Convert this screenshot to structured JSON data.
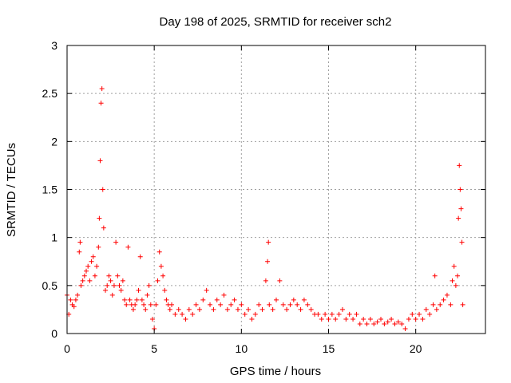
{
  "chart_data": {
    "type": "scatter",
    "title": "Day 198 of 2025, SRMTID for receiver sch2",
    "xlabel": "GPS time / hours",
    "ylabel": "SRMTID / TECUs",
    "xlim": [
      0,
      24
    ],
    "ylim": [
      0,
      3
    ],
    "xticks": [
      0,
      5,
      10,
      15,
      20
    ],
    "yticks": [
      0,
      0.5,
      1,
      1.5,
      2,
      2.5,
      3
    ],
    "grid": true,
    "marker": "+",
    "series": [
      {
        "name": "SRMTID",
        "color": "#ff0000",
        "points": [
          [
            0.0,
            0.4
          ],
          [
            0.1,
            0.2
          ],
          [
            0.2,
            0.35
          ],
          [
            0.3,
            0.3
          ],
          [
            0.4,
            0.28
          ],
          [
            0.5,
            0.35
          ],
          [
            0.6,
            0.4
          ],
          [
            0.7,
            0.85
          ],
          [
            0.75,
            0.95
          ],
          [
            0.8,
            0.5
          ],
          [
            0.9,
            0.55
          ],
          [
            1.0,
            0.6
          ],
          [
            1.1,
            0.65
          ],
          [
            1.2,
            0.7
          ],
          [
            1.3,
            0.55
          ],
          [
            1.4,
            0.75
          ],
          [
            1.5,
            0.8
          ],
          [
            1.6,
            0.6
          ],
          [
            1.7,
            0.7
          ],
          [
            1.8,
            0.9
          ],
          [
            1.85,
            1.2
          ],
          [
            1.9,
            1.8
          ],
          [
            1.95,
            2.4
          ],
          [
            2.0,
            2.55
          ],
          [
            2.05,
            1.5
          ],
          [
            2.1,
            1.1
          ],
          [
            2.2,
            0.45
          ],
          [
            2.3,
            0.5
          ],
          [
            2.4,
            0.6
          ],
          [
            2.5,
            0.55
          ],
          [
            2.6,
            0.4
          ],
          [
            2.7,
            0.5
          ],
          [
            2.8,
            0.95
          ],
          [
            2.9,
            0.6
          ],
          [
            3.0,
            0.5
          ],
          [
            3.1,
            0.45
          ],
          [
            3.2,
            0.55
          ],
          [
            3.3,
            0.35
          ],
          [
            3.4,
            0.3
          ],
          [
            3.5,
            0.9
          ],
          [
            3.6,
            0.35
          ],
          [
            3.7,
            0.3
          ],
          [
            3.8,
            0.25
          ],
          [
            3.9,
            0.3
          ],
          [
            4.0,
            0.35
          ],
          [
            4.1,
            0.45
          ],
          [
            4.2,
            0.8
          ],
          [
            4.3,
            0.35
          ],
          [
            4.4,
            0.3
          ],
          [
            4.5,
            0.25
          ],
          [
            4.6,
            0.4
          ],
          [
            4.7,
            0.5
          ],
          [
            4.8,
            0.3
          ],
          [
            4.9,
            0.15
          ],
          [
            5.0,
            0.05
          ],
          [
            5.1,
            0.3
          ],
          [
            5.2,
            0.55
          ],
          [
            5.3,
            0.85
          ],
          [
            5.4,
            0.7
          ],
          [
            5.5,
            0.6
          ],
          [
            5.6,
            0.45
          ],
          [
            5.7,
            0.35
          ],
          [
            5.8,
            0.3
          ],
          [
            5.9,
            0.25
          ],
          [
            6.0,
            0.3
          ],
          [
            6.2,
            0.2
          ],
          [
            6.4,
            0.25
          ],
          [
            6.6,
            0.2
          ],
          [
            6.8,
            0.15
          ],
          [
            7.0,
            0.25
          ],
          [
            7.2,
            0.2
          ],
          [
            7.4,
            0.3
          ],
          [
            7.6,
            0.25
          ],
          [
            7.8,
            0.35
          ],
          [
            8.0,
            0.45
          ],
          [
            8.2,
            0.3
          ],
          [
            8.4,
            0.25
          ],
          [
            8.6,
            0.35
          ],
          [
            8.8,
            0.3
          ],
          [
            9.0,
            0.4
          ],
          [
            9.2,
            0.25
          ],
          [
            9.4,
            0.3
          ],
          [
            9.6,
            0.35
          ],
          [
            9.8,
            0.25
          ],
          [
            10.0,
            0.3
          ],
          [
            10.2,
            0.2
          ],
          [
            10.4,
            0.25
          ],
          [
            10.6,
            0.15
          ],
          [
            10.8,
            0.2
          ],
          [
            11.0,
            0.3
          ],
          [
            11.2,
            0.25
          ],
          [
            11.4,
            0.55
          ],
          [
            11.5,
            0.75
          ],
          [
            11.55,
            0.95
          ],
          [
            11.6,
            0.3
          ],
          [
            11.8,
            0.25
          ],
          [
            12.0,
            0.35
          ],
          [
            12.2,
            0.55
          ],
          [
            12.4,
            0.3
          ],
          [
            12.6,
            0.25
          ],
          [
            12.8,
            0.3
          ],
          [
            13.0,
            0.35
          ],
          [
            13.2,
            0.3
          ],
          [
            13.4,
            0.25
          ],
          [
            13.6,
            0.35
          ],
          [
            13.8,
            0.3
          ],
          [
            14.0,
            0.25
          ],
          [
            14.2,
            0.2
          ],
          [
            14.4,
            0.2
          ],
          [
            14.6,
            0.15
          ],
          [
            14.8,
            0.2
          ],
          [
            15.0,
            0.15
          ],
          [
            15.2,
            0.2
          ],
          [
            15.4,
            0.15
          ],
          [
            15.6,
            0.2
          ],
          [
            15.8,
            0.25
          ],
          [
            16.0,
            0.15
          ],
          [
            16.2,
            0.2
          ],
          [
            16.4,
            0.15
          ],
          [
            16.6,
            0.2
          ],
          [
            16.8,
            0.1
          ],
          [
            17.0,
            0.15
          ],
          [
            17.2,
            0.1
          ],
          [
            17.4,
            0.15
          ],
          [
            17.6,
            0.1
          ],
          [
            17.8,
            0.12
          ],
          [
            18.0,
            0.15
          ],
          [
            18.2,
            0.1
          ],
          [
            18.4,
            0.12
          ],
          [
            18.6,
            0.15
          ],
          [
            18.8,
            0.1
          ],
          [
            19.0,
            0.12
          ],
          [
            19.2,
            0.1
          ],
          [
            19.4,
            0.05
          ],
          [
            19.6,
            0.15
          ],
          [
            19.8,
            0.2
          ],
          [
            20.0,
            0.15
          ],
          [
            20.2,
            0.2
          ],
          [
            20.4,
            0.15
          ],
          [
            20.6,
            0.25
          ],
          [
            20.8,
            0.2
          ],
          [
            21.0,
            0.3
          ],
          [
            21.1,
            0.6
          ],
          [
            21.2,
            0.25
          ],
          [
            21.4,
            0.3
          ],
          [
            21.6,
            0.35
          ],
          [
            21.8,
            0.4
          ],
          [
            22.0,
            0.3
          ],
          [
            22.1,
            0.55
          ],
          [
            22.2,
            0.7
          ],
          [
            22.3,
            0.5
          ],
          [
            22.4,
            0.6
          ],
          [
            22.45,
            1.2
          ],
          [
            22.5,
            1.75
          ],
          [
            22.55,
            1.5
          ],
          [
            22.6,
            1.3
          ],
          [
            22.65,
            0.95
          ],
          [
            22.7,
            0.3
          ]
        ]
      }
    ]
  }
}
